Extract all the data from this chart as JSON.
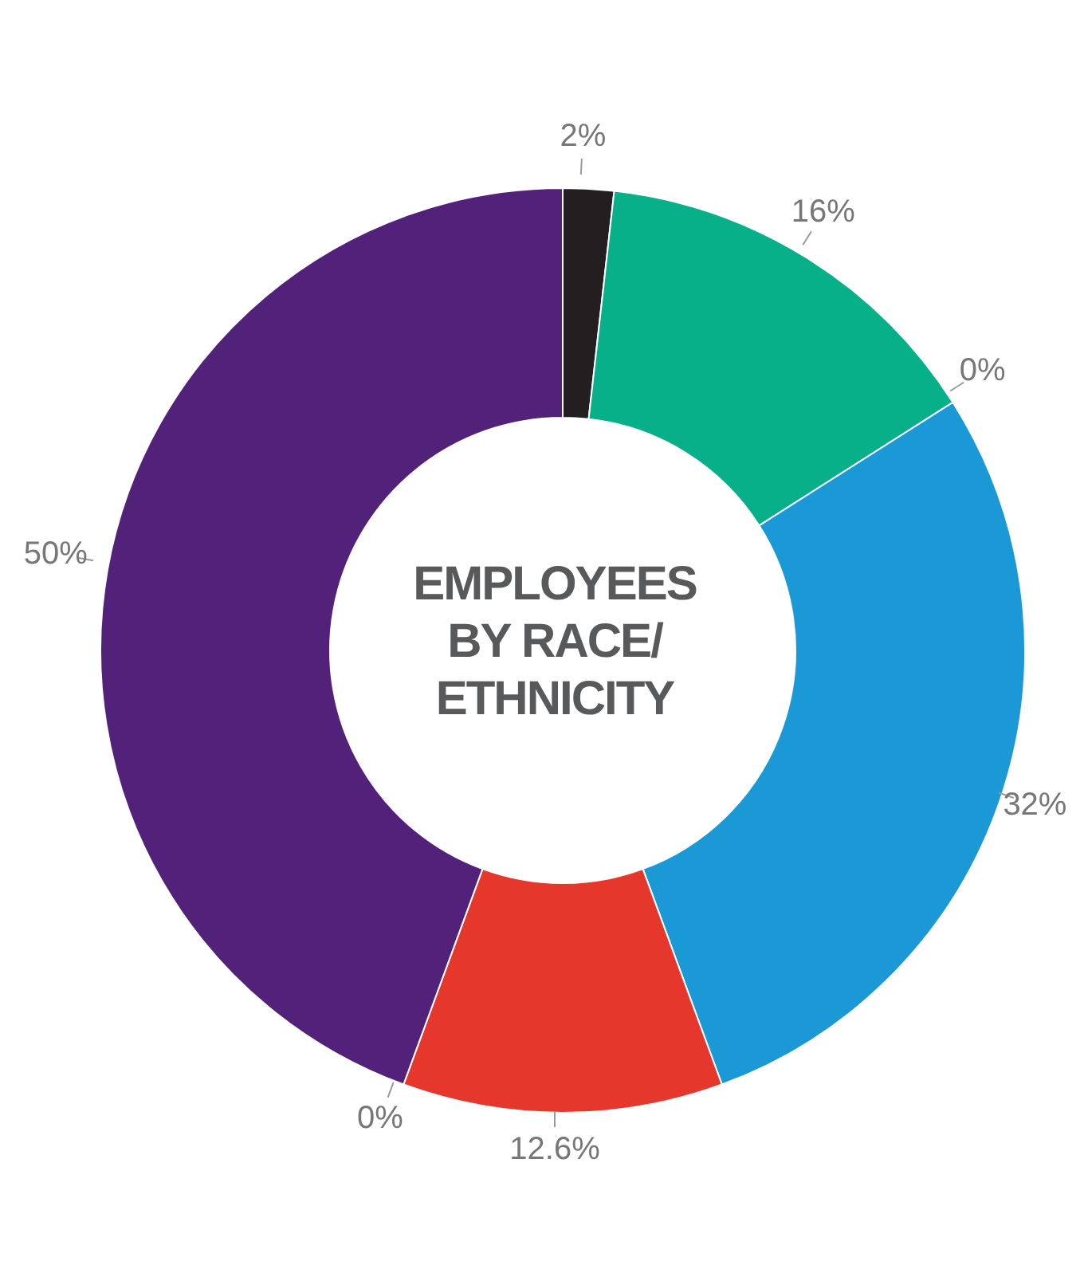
{
  "chart_data": {
    "type": "donut",
    "title": "EMPLOYEES BY RACE/ ETHNICITY",
    "categories": [
      null,
      null,
      null,
      null,
      null,
      null,
      null
    ],
    "values": [
      2,
      16,
      0,
      32,
      12.6,
      0,
      50
    ],
    "colors": [
      "#231f20",
      "#07b088",
      "#5a5a5a",
      "#1b98d6",
      "#e5372c",
      "#a0a0a0",
      "#52217a"
    ],
    "value_labels": [
      "2%",
      "16%",
      "0%",
      "32%",
      "12.6%",
      "0%",
      "50%"
    ],
    "legend": false
  }
}
